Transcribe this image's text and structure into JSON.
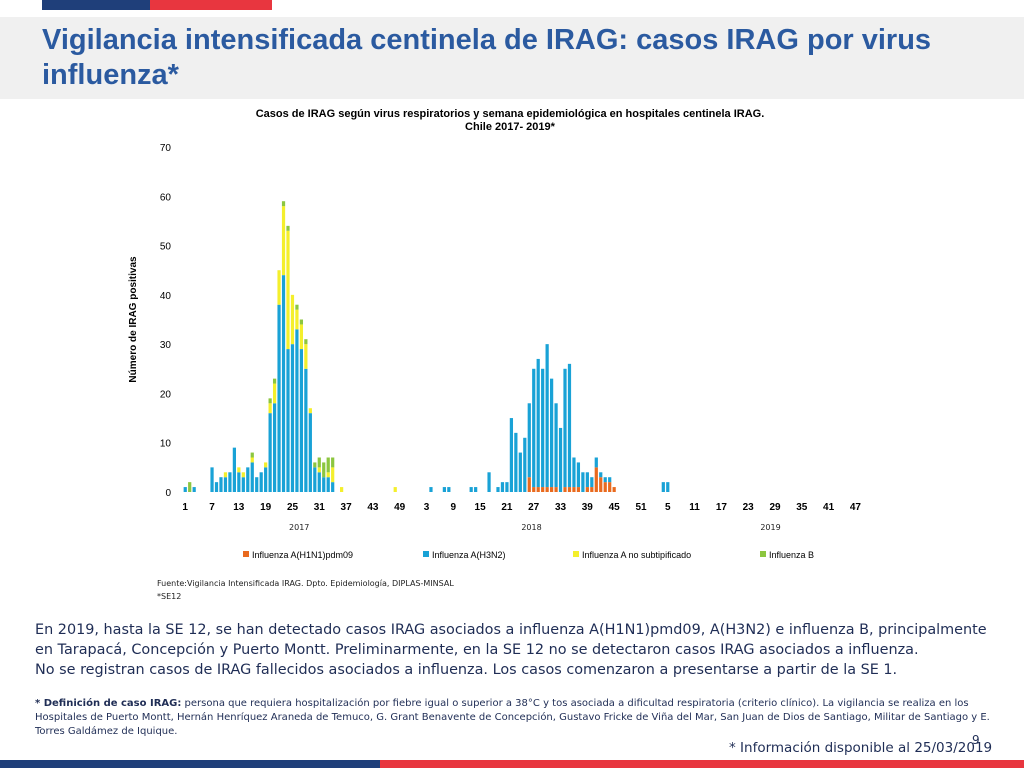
{
  "colors": {
    "navy": "#1f3f7a",
    "red": "#e8363f",
    "text_blue": "#1f2d55",
    "title_blue": "#2b5aa0",
    "h1n1": "#e96a1e",
    "h3n2": "#19a2d6",
    "no_subtype": "#f4ef2c",
    "flu_b": "#8cc63f"
  },
  "slide": {
    "title": "Vigilancia intensificada centinela de IRAG: casos IRAG por virus influenza*",
    "page_number": "9",
    "paragraph_1": "En 2019, hasta la SE 12, se han detectado casos IRAG asociados a influenza A(H1N1)pmd09, A(H3N2) e influenza B, principalmente en Tarapacá, Concepción y Puerto Montt. Preliminarmente, en la SE 12 no se detectaron casos IRAG asociados a influenza.",
    "paragraph_2": "No se registran casos de IRAG fallecidos asociados a influenza. Los casos comenzaron a presentarse a partir de la SE 1.",
    "definition_label": "* Definición de caso IRAG:",
    "definition_text": " persona que requiera hospitalización por fiebre igual o superior a 38°C y tos asociada a dificultad respiratoria (criterio clínico). La vigilancia se realiza en los Hospitales de Puerto Montt, Hernán Henríquez Araneda de Temuco, G. Grant Benavente de Concepción, Gustavo Fricke de Viña del Mar, San Juan de Dios de Santiago, Militar de Santiago y E. Torres Galdámez de Iquique.",
    "info_note": "* Información disponible al 25/03/2019"
  },
  "chart_data": {
    "type": "bar",
    "stacked": true,
    "title_line1": "Casos de IRAG según virus respiratorios y semana epidemiológica en hospitales centinela IRAG.",
    "title_line2": "Chile 2017- 2019*",
    "ylabel": "Número de IRAG positivas",
    "ylim": [
      0,
      70
    ],
    "yticks": [
      0,
      10,
      20,
      30,
      40,
      50,
      60,
      70
    ],
    "grid": false,
    "legend_position": "bottom",
    "x_tick_labels": [
      "1",
      "7",
      "13",
      "19",
      "25",
      "31",
      "37",
      "43",
      "49",
      "3",
      "9",
      "15",
      "21",
      "27",
      "33",
      "39",
      "45",
      "51",
      "5",
      "11",
      "17",
      "23",
      "29",
      "35",
      "41",
      "47"
    ],
    "x_tick_indices": [
      0,
      6,
      12,
      18,
      24,
      30,
      36,
      42,
      48,
      54,
      60,
      66,
      72,
      78,
      84,
      90,
      96,
      102,
      108,
      114,
      120,
      126,
      132,
      138,
      144,
      150
    ],
    "year_labels": [
      {
        "label": "2017",
        "index": 25.5
      },
      {
        "label": "2018",
        "index": 77.5
      },
      {
        "label": "2019",
        "index": 131
      }
    ],
    "total_weeks": 156,
    "series": [
      {
        "name": "Influenza A(H1N1)pdm09",
        "color": "#e96a1e",
        "values": [
          0,
          0,
          0,
          0,
          0,
          0,
          0,
          0,
          0,
          0,
          0,
          0,
          0,
          0,
          0,
          0,
          0,
          0,
          0,
          0,
          0,
          0,
          0,
          0,
          0,
          0,
          0,
          0,
          0,
          0,
          0,
          0,
          0,
          0,
          0,
          0,
          0,
          0,
          0,
          0,
          0,
          0,
          0,
          0,
          0,
          0,
          0,
          0,
          0,
          0,
          0,
          0,
          0,
          0,
          0,
          0,
          0,
          0,
          0,
          0,
          0,
          0,
          0,
          0,
          0,
          0,
          0,
          0,
          0,
          0,
          0,
          0,
          0,
          0,
          0,
          0,
          0,
          3,
          1,
          1,
          1,
          1,
          1,
          1,
          0,
          1,
          1,
          1,
          1,
          0,
          1,
          1,
          5,
          3,
          2,
          2,
          1,
          0,
          0,
          0,
          0,
          0,
          0,
          0,
          0,
          0,
          0,
          0,
          0,
          0,
          0,
          0,
          0,
          0,
          0,
          0,
          0,
          0,
          0,
          0,
          0,
          0,
          0,
          0,
          0,
          0,
          0,
          0,
          0,
          0,
          0,
          0,
          0,
          0,
          0,
          0,
          0,
          0,
          0,
          0,
          0,
          0,
          0,
          0,
          0,
          0,
          0,
          0,
          0,
          0,
          0,
          0,
          0,
          0,
          0,
          0
        ]
      },
      {
        "name": "Influenza A(H3N2)",
        "color": "#19a2d6",
        "values": [
          1,
          0,
          1,
          0,
          0,
          0,
          5,
          2,
          3,
          3,
          4,
          9,
          4,
          3,
          5,
          6,
          3,
          4,
          5,
          16,
          18,
          38,
          44,
          29,
          30,
          33,
          29,
          25,
          16,
          5,
          4,
          3,
          3,
          2,
          0,
          0,
          0,
          0,
          0,
          0,
          0,
          0,
          0,
          0,
          0,
          0,
          0,
          0,
          0,
          0,
          0,
          0,
          0,
          0,
          0,
          1,
          0,
          0,
          1,
          1,
          0,
          0,
          0,
          0,
          1,
          1,
          0,
          0,
          4,
          0,
          1,
          2,
          2,
          15,
          12,
          8,
          11,
          15,
          24,
          26,
          24,
          29,
          22,
          17,
          13,
          24,
          25,
          6,
          5,
          4,
          3,
          2,
          2,
          1,
          1,
          1,
          0,
          0,
          0,
          0,
          0,
          0,
          0,
          0,
          0,
          0,
          0,
          2,
          2,
          0,
          0,
          0,
          0,
          0,
          0,
          0,
          0,
          0,
          0,
          0,
          0,
          0,
          0,
          0,
          0,
          0,
          0,
          0,
          0,
          0,
          0,
          0,
          0,
          0,
          0,
          0,
          0,
          0,
          0,
          0,
          0,
          0,
          0,
          0,
          0,
          0,
          0,
          0,
          0,
          0,
          0,
          0,
          0,
          0,
          0,
          0
        ]
      },
      {
        "name": "Influenza A no subtipificado",
        "color": "#f4ef2c",
        "values": [
          0,
          0,
          0,
          0,
          0,
          0,
          0,
          0,
          0,
          1,
          0,
          0,
          1,
          1,
          0,
          1,
          0,
          0,
          1,
          2,
          4,
          7,
          14,
          24,
          10,
          4,
          5,
          5,
          1,
          0,
          1,
          0,
          1,
          3,
          0,
          1,
          0,
          0,
          0,
          0,
          0,
          0,
          0,
          0,
          0,
          0,
          0,
          1,
          0,
          0,
          0,
          0,
          0,
          0,
          0,
          0,
          0,
          0,
          0,
          0,
          0,
          0,
          0,
          0,
          0,
          0,
          0,
          0,
          0,
          0,
          0,
          0,
          0,
          0,
          0,
          0,
          0,
          0,
          0,
          0,
          0,
          0,
          0,
          0,
          0,
          0,
          0,
          0,
          0,
          0,
          0,
          0,
          0,
          0,
          0,
          0,
          0,
          0,
          0,
          0,
          0,
          0,
          0,
          0,
          0,
          0,
          0,
          0,
          0,
          0,
          0,
          0,
          0,
          0,
          0,
          0,
          0,
          0,
          0,
          0,
          0,
          0,
          0,
          0,
          0,
          0,
          0,
          0,
          0,
          0,
          0,
          0,
          0,
          0,
          0,
          0,
          0,
          0,
          0,
          0,
          0,
          0,
          0,
          0,
          0,
          0,
          0,
          0,
          0,
          0,
          0,
          0,
          0,
          0,
          0,
          0
        ]
      },
      {
        "name": "Influenza  B",
        "color": "#8cc63f",
        "values": [
          0,
          2,
          0,
          0,
          0,
          0,
          0,
          0,
          0,
          0,
          0,
          0,
          0,
          0,
          0,
          1,
          0,
          0,
          0,
          1,
          1,
          0,
          1,
          1,
          0,
          1,
          1,
          1,
          0,
          1,
          2,
          3,
          3,
          2,
          0,
          0,
          0,
          0,
          0,
          0,
          0,
          0,
          0,
          0,
          0,
          0,
          0,
          0,
          0,
          0,
          0,
          0,
          0,
          0,
          0,
          0,
          0,
          0,
          0,
          0,
          0,
          0,
          0,
          0,
          0,
          0,
          0,
          0,
          0,
          0,
          0,
          0,
          0,
          0,
          0,
          0,
          0,
          0,
          0,
          0,
          0,
          0,
          0,
          0,
          0,
          0,
          0,
          0,
          0,
          0,
          0,
          0,
          0,
          0,
          0,
          0,
          0,
          0,
          0,
          0,
          0,
          0,
          0,
          0,
          0,
          0,
          0,
          0,
          0,
          0,
          0,
          0,
          0,
          0,
          0,
          0,
          0,
          0,
          0,
          0,
          0,
          0,
          0,
          0,
          0,
          0,
          0,
          0,
          0,
          0,
          0,
          0,
          0,
          0,
          0,
          0,
          0,
          0,
          0,
          0,
          0,
          0,
          0,
          0,
          0,
          0,
          0,
          0,
          0,
          0,
          0,
          0,
          0,
          0,
          0,
          0
        ]
      }
    ],
    "footnote_source": "Fuente:Vigilancia Intensificada IRAG. Dpto. Epidemiología, DIPLAS-MINSAL",
    "footnote_cutoff": "*SE12"
  }
}
